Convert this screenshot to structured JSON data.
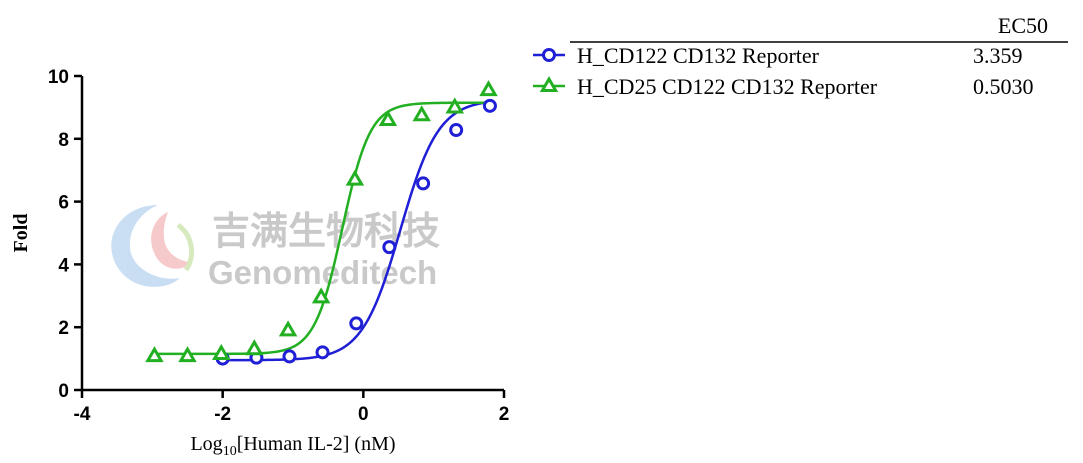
{
  "watermark": {
    "chinese": "吉满生物科技",
    "english": "Genomeditech"
  },
  "chart_data": {
    "type": "scatter",
    "xlabel_prefix": "Log",
    "xlabel_sub": "10",
    "xlabel_suffix": "[Human IL-2] (nM)",
    "ylabel": "Fold",
    "xlim": [
      -4,
      2
    ],
    "ylim": [
      0,
      10
    ],
    "x_ticks": [
      -4,
      -2,
      0,
      2
    ],
    "y_ticks": [
      0,
      2,
      4,
      6,
      8,
      10
    ],
    "grid": false,
    "legend_position": "top-right",
    "legend_header": "EC50",
    "series": [
      {
        "name": "H_CD122 CD132 Reporter",
        "ec50": "3.359",
        "color": "#1f1fd6",
        "marker": "circle",
        "x": [
          -2.0,
          -1.52,
          -1.05,
          -0.58,
          -0.1,
          0.37,
          0.85,
          1.32,
          1.8
        ],
        "y": [
          1.0,
          1.03,
          1.07,
          1.2,
          2.12,
          4.55,
          6.58,
          8.28,
          9.05
        ],
        "fit": {
          "bottom": 0.95,
          "top": 9.25,
          "logEC50": 0.5262,
          "hill": 1.6
        }
      },
      {
        "name": "H_CD25 CD122 CD132 Reporter",
        "ec50": "0.5030",
        "color": "#22b022",
        "marker": "triangle",
        "x": [
          -2.97,
          -2.5,
          -2.02,
          -1.55,
          -1.07,
          -0.6,
          -0.12,
          0.35,
          0.83,
          1.3,
          1.78
        ],
        "y": [
          1.08,
          1.08,
          1.15,
          1.3,
          1.9,
          2.95,
          6.7,
          8.6,
          8.75,
          9.0,
          9.55
        ],
        "fit": {
          "bottom": 1.15,
          "top": 9.15,
          "logEC50": -0.2984,
          "hill": 2.2
        }
      }
    ]
  }
}
